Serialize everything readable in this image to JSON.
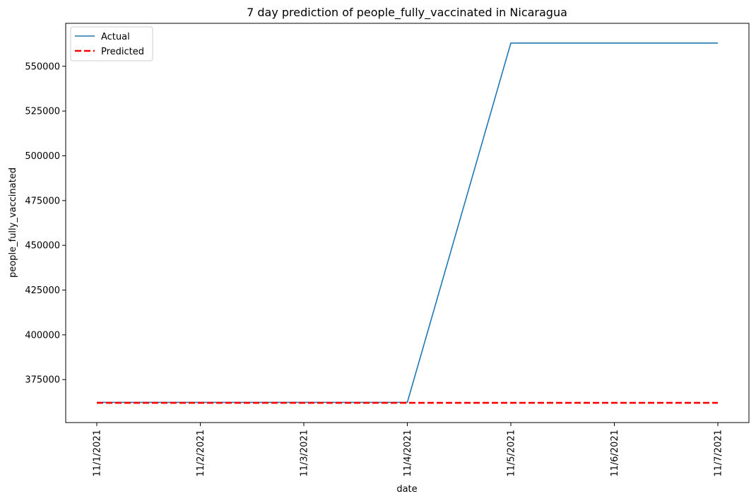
{
  "chart_data": {
    "type": "line",
    "title": "7 day prediction of people_fully_vaccinated in Nicaragua",
    "xlabel": "date",
    "ylabel": "people_fully_vaccinated",
    "categories": [
      "11/1/2021",
      "11/2/2021",
      "11/3/2021",
      "11/4/2021",
      "11/5/2021",
      "11/6/2021",
      "11/7/2021"
    ],
    "yticks": [
      375000,
      400000,
      425000,
      450000,
      475000,
      500000,
      525000,
      550000
    ],
    "ylim": [
      351000,
      574000
    ],
    "legend_position": "top-left",
    "grid": false,
    "series": [
      {
        "name": "Actual",
        "color": "#1f77b4",
        "style": "solid",
        "values": [
          362300,
          362300,
          362300,
          362300,
          563000,
          563000,
          563000
        ]
      },
      {
        "name": "Predicted",
        "color": "#ff0000",
        "style": "dashed",
        "values": [
          362000,
          362000,
          362000,
          362000,
          362000,
          362000,
          362000
        ]
      }
    ]
  }
}
